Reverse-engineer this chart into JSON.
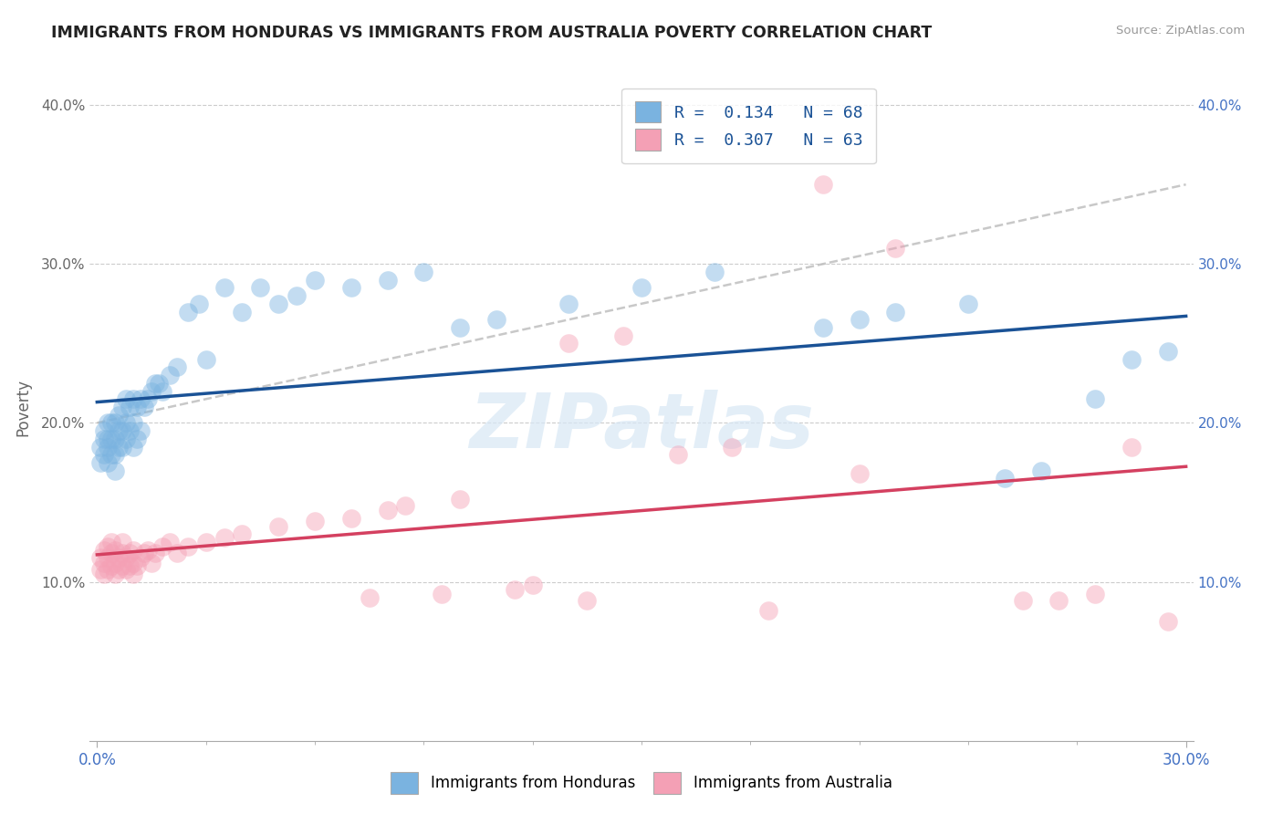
{
  "title": "IMMIGRANTS FROM HONDURAS VS IMMIGRANTS FROM AUSTRALIA POVERTY CORRELATION CHART",
  "source": "Source: ZipAtlas.com",
  "ylabel": "Poverty",
  "xlim": [
    -0.002,
    0.302
  ],
  "ylim": [
    0.0,
    0.42
  ],
  "xtick_positions": [
    0.0,
    0.3
  ],
  "xticklabels": [
    "0.0%",
    "30.0%"
  ],
  "yticks": [
    0.1,
    0.2,
    0.3,
    0.4
  ],
  "yticklabels": [
    "10.0%",
    "20.0%",
    "30.0%",
    "40.0%"
  ],
  "legend_r1": "R =  0.134   N = 68",
  "legend_r2": "R =  0.307   N = 63",
  "blue_color": "#7ab3e0",
  "pink_color": "#f4a0b5",
  "trend_blue": "#1a5296",
  "trend_pink": "#d44060",
  "trend_gray": "#bbbbbb",
  "watermark": "ZIPatlas",
  "honduras_x": [
    0.001,
    0.001,
    0.002,
    0.002,
    0.002,
    0.003,
    0.003,
    0.003,
    0.003,
    0.004,
    0.004,
    0.004,
    0.005,
    0.005,
    0.005,
    0.005,
    0.006,
    0.006,
    0.006,
    0.007,
    0.007,
    0.007,
    0.008,
    0.008,
    0.008,
    0.009,
    0.009,
    0.01,
    0.01,
    0.01,
    0.011,
    0.011,
    0.012,
    0.012,
    0.013,
    0.014,
    0.015,
    0.016,
    0.017,
    0.018,
    0.02,
    0.022,
    0.025,
    0.028,
    0.03,
    0.035,
    0.04,
    0.045,
    0.05,
    0.055,
    0.06,
    0.07,
    0.08,
    0.09,
    0.1,
    0.11,
    0.13,
    0.15,
    0.17,
    0.2,
    0.21,
    0.22,
    0.24,
    0.25,
    0.26,
    0.275,
    0.285,
    0.295
  ],
  "honduras_y": [
    0.175,
    0.185,
    0.18,
    0.19,
    0.195,
    0.175,
    0.185,
    0.19,
    0.2,
    0.18,
    0.19,
    0.2,
    0.17,
    0.18,
    0.19,
    0.2,
    0.185,
    0.195,
    0.205,
    0.185,
    0.195,
    0.21,
    0.19,
    0.2,
    0.215,
    0.195,
    0.21,
    0.185,
    0.2,
    0.215,
    0.19,
    0.21,
    0.195,
    0.215,
    0.21,
    0.215,
    0.22,
    0.225,
    0.225,
    0.22,
    0.23,
    0.235,
    0.27,
    0.275,
    0.24,
    0.285,
    0.27,
    0.285,
    0.275,
    0.28,
    0.29,
    0.285,
    0.29,
    0.295,
    0.26,
    0.265,
    0.275,
    0.285,
    0.295,
    0.26,
    0.265,
    0.27,
    0.275,
    0.165,
    0.17,
    0.215,
    0.24,
    0.245
  ],
  "australia_x": [
    0.001,
    0.001,
    0.002,
    0.002,
    0.002,
    0.003,
    0.003,
    0.003,
    0.004,
    0.004,
    0.004,
    0.005,
    0.005,
    0.005,
    0.006,
    0.006,
    0.007,
    0.007,
    0.007,
    0.008,
    0.008,
    0.009,
    0.009,
    0.01,
    0.01,
    0.01,
    0.011,
    0.012,
    0.013,
    0.014,
    0.015,
    0.016,
    0.018,
    0.02,
    0.022,
    0.025,
    0.03,
    0.035,
    0.04,
    0.05,
    0.06,
    0.07,
    0.075,
    0.08,
    0.085,
    0.095,
    0.1,
    0.115,
    0.12,
    0.13,
    0.135,
    0.145,
    0.16,
    0.175,
    0.185,
    0.2,
    0.21,
    0.22,
    0.255,
    0.265,
    0.275,
    0.285,
    0.295
  ],
  "australia_y": [
    0.108,
    0.115,
    0.105,
    0.112,
    0.12,
    0.108,
    0.115,
    0.122,
    0.11,
    0.118,
    0.125,
    0.105,
    0.112,
    0.12,
    0.108,
    0.115,
    0.11,
    0.118,
    0.125,
    0.108,
    0.115,
    0.11,
    0.118,
    0.105,
    0.112,
    0.12,
    0.11,
    0.115,
    0.118,
    0.12,
    0.112,
    0.118,
    0.122,
    0.125,
    0.118,
    0.122,
    0.125,
    0.128,
    0.13,
    0.135,
    0.138,
    0.14,
    0.09,
    0.145,
    0.148,
    0.092,
    0.152,
    0.095,
    0.098,
    0.25,
    0.088,
    0.255,
    0.18,
    0.185,
    0.082,
    0.35,
    0.168,
    0.31,
    0.088,
    0.088,
    0.092,
    0.185,
    0.075
  ]
}
